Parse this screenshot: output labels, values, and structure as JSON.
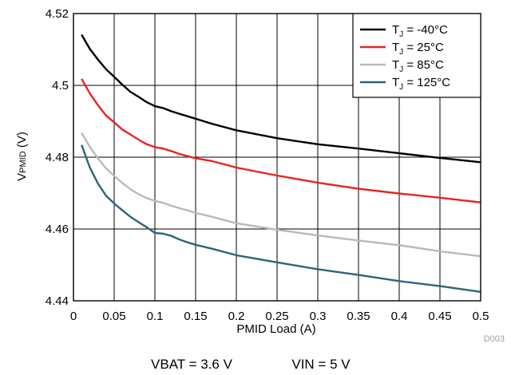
{
  "chart_data": {
    "type": "line",
    "title": "",
    "xlabel": "PMID Load (A)",
    "ylabel": {
      "main": "V",
      "sub": "PMID",
      "unit": " (V)"
    },
    "xlim": [
      0,
      0.5
    ],
    "ylim": [
      4.44,
      4.52
    ],
    "xticks": [
      "0",
      "0.05",
      "0.1",
      "0.15",
      "0.2",
      "0.25",
      "0.3",
      "0.35",
      "0.4",
      "0.45",
      "0.5"
    ],
    "xtick_values": [
      0,
      0.05,
      0.1,
      0.15,
      0.2,
      0.25,
      0.3,
      0.35,
      0.4,
      0.45,
      0.5
    ],
    "yticks": [
      "4.44",
      "4.46",
      "4.48",
      "4.5",
      "4.52"
    ],
    "ytick_values": [
      4.44,
      4.46,
      4.48,
      4.5,
      4.52
    ],
    "grid": true,
    "legend_position": "top-right",
    "x": [
      0.01,
      0.02,
      0.03,
      0.04,
      0.05,
      0.06,
      0.07,
      0.08,
      0.09,
      0.1,
      0.11,
      0.12,
      0.13,
      0.14,
      0.15,
      0.17,
      0.2,
      0.25,
      0.3,
      0.35,
      0.4,
      0.45,
      0.5
    ],
    "series": [
      {
        "legend": {
          "pre": "T",
          "sub": "J",
          "post": " =  -40°C"
        },
        "color": "#000000",
        "values": [
          4.5141,
          4.5102,
          4.5072,
          4.5045,
          4.5024,
          4.5002,
          4.4982,
          4.4968,
          4.4953,
          4.4942,
          4.4937,
          4.4928,
          4.4921,
          4.4914,
          4.4907,
          4.4893,
          4.4875,
          4.4853,
          4.4836,
          4.4824,
          4.4811,
          4.4798,
          4.4786
        ]
      },
      {
        "legend": {
          "pre": "T",
          "sub": "J",
          "post": " =  25°C"
        },
        "color": "#e8231f",
        "values": [
          4.5018,
          4.4978,
          4.4945,
          4.4916,
          4.4897,
          4.4877,
          4.4863,
          4.4849,
          4.4836,
          4.4828,
          4.4824,
          4.4817,
          4.4809,
          4.4803,
          4.4797,
          4.4789,
          4.4771,
          4.4749,
          4.4729,
          4.4712,
          4.4699,
          4.4687,
          4.4674
        ]
      },
      {
        "legend": {
          "pre": "T",
          "sub": "J",
          "post": " =  85°C"
        },
        "color": "#b9b9b9",
        "values": [
          4.4868,
          4.4829,
          4.4797,
          4.4769,
          4.4748,
          4.4728,
          4.4711,
          4.4697,
          4.4686,
          4.4678,
          4.4673,
          4.4665,
          4.4658,
          4.4652,
          4.4645,
          4.4634,
          4.4616,
          4.4598,
          4.4582,
          4.4568,
          4.4555,
          4.4538,
          4.4524
        ]
      },
      {
        "legend": {
          "pre": "T",
          "sub": "J",
          "post": " =  125°C"
        },
        "color": "#2e6479",
        "values": [
          4.4834,
          4.4772,
          4.4727,
          4.4693,
          4.4671,
          4.4652,
          4.4634,
          4.4619,
          4.4605,
          4.4589,
          4.4587,
          4.4581,
          4.4571,
          4.4563,
          4.4556,
          4.4545,
          4.4527,
          4.4507,
          4.4488,
          4.4472,
          4.4455,
          4.4441,
          4.4425
        ]
      }
    ],
    "annotations": {
      "code": "D003"
    }
  },
  "caption": {
    "vbat": "VBAT = 3.6 V",
    "vin": "VIN = 5 V"
  }
}
